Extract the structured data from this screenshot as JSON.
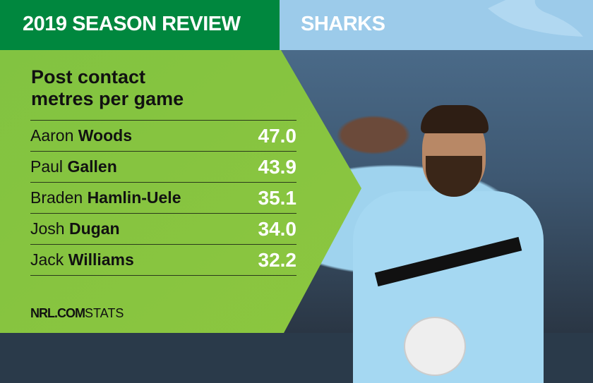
{
  "header": {
    "title": "2019 SEASON REVIEW",
    "team": "SHARKS"
  },
  "stat": {
    "title_line1": "Post contact",
    "title_line2": "metres per game"
  },
  "players": [
    {
      "first": "Aaron",
      "last": "Woods",
      "value": "47.0"
    },
    {
      "first": "Paul",
      "last": "Gallen",
      "value": "43.9"
    },
    {
      "first": "Braden",
      "last": "Hamlin-Uele",
      "value": "35.1"
    },
    {
      "first": "Josh",
      "last": "Dugan",
      "value": "34.0"
    },
    {
      "first": "Jack",
      "last": "Williams",
      "value": "32.2"
    }
  ],
  "footer": {
    "brand": "NRL.COM",
    "suffix": "STATS"
  },
  "colors": {
    "header_green": "#00873e",
    "header_blue": "#9ccbea",
    "panel_green": "#8cc63f"
  }
}
